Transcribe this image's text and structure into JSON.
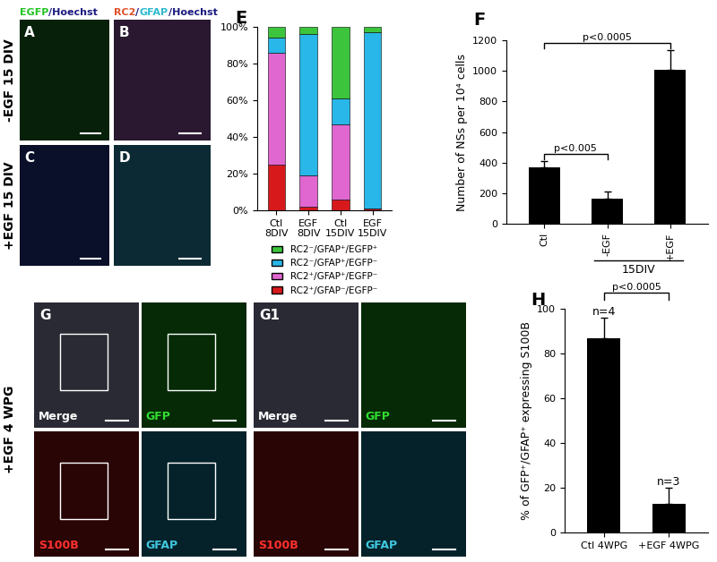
{
  "figure": {
    "row_labels": [
      "-EGF 15 DIV",
      "+EGF 15 DIV",
      "+EGF 4 WPG"
    ],
    "column_headers": [
      [
        {
          "text": "EGFP",
          "color": "#22c522"
        },
        {
          "text": "/Hoechst",
          "color": "#1a1a80"
        }
      ],
      [
        {
          "text": "RC2",
          "color": "#e0502a"
        },
        {
          "text": "/",
          "color": "#1a1a80"
        },
        {
          "text": "GFAP",
          "color": "#2fb8d0"
        },
        {
          "text": "/Hoechst",
          "color": "#1a1a80"
        }
      ]
    ],
    "image_panels": [
      "A",
      "B",
      "C",
      "D"
    ],
    "g_groups": [
      {
        "label": "G",
        "captions": [
          {
            "text": "Merge",
            "color": "#ffffff"
          },
          {
            "text": "GFP",
            "color": "#33dd33"
          },
          {
            "text": "S100B",
            "color": "#ff3030"
          },
          {
            "text": "GFAP",
            "color": "#40c8e0"
          }
        ]
      },
      {
        "label": "G1",
        "captions": [
          {
            "text": "Merge",
            "color": "#ffffff"
          },
          {
            "text": "GFP",
            "color": "#33dd33"
          },
          {
            "text": "S100B",
            "color": "#ff3030"
          },
          {
            "text": "GFAP",
            "color": "#40c8e0"
          }
        ]
      }
    ]
  },
  "chart_data": [
    {
      "panel_label": "E",
      "type": "bar",
      "stacked": true,
      "categories": [
        "Ctl\n8DIV",
        "EGF\n8DIV",
        "Ctl\n15DIV",
        "EGF\n15DIV"
      ],
      "series": [
        {
          "name": "RC2⁺/GFAP⁻/EGFP⁻",
          "color": "#d7191c",
          "values": [
            25,
            2,
            6,
            1
          ]
        },
        {
          "name": "RC2⁺/GFAP⁺/EGFP⁻",
          "color": "#e066d0",
          "values": [
            61,
            17,
            41,
            0
          ]
        },
        {
          "name": "RC2⁻/GFAP⁺/EGFP⁻",
          "color": "#29b6e8",
          "values": [
            8,
            77,
            14,
            96
          ]
        },
        {
          "name": "RC2⁻/GFAP⁺/EGFP⁺",
          "color": "#3cc43c",
          "values": [
            6,
            4,
            39,
            3
          ]
        }
      ],
      "ylim": [
        0,
        100
      ],
      "yticks": [
        {
          "value": 0,
          "label": "0%"
        },
        {
          "value": 20,
          "label": "20%"
        },
        {
          "value": 40,
          "label": "40%"
        },
        {
          "value": 60,
          "label": "60%"
        },
        {
          "value": 80,
          "label": "80%"
        },
        {
          "value": 100,
          "label": "100%"
        }
      ],
      "legend": "upper center"
    },
    {
      "panel_label": "F",
      "type": "bar",
      "categories": [
        "Ctl",
        "-EGF",
        "+EGF"
      ],
      "values": [
        370,
        165,
        1005
      ],
      "errors": [
        40,
        45,
        130
      ],
      "color": "#000000",
      "ylabel": "Number of NSs per 10⁴ cells",
      "ylim": [
        0,
        1200
      ],
      "yticks": [
        0,
        200,
        400,
        600,
        800,
        1000,
        1200
      ],
      "annotations": [
        {
          "text": "p<0.005",
          "between": [
            0,
            1
          ]
        },
        {
          "text": "p<0.0005",
          "between": [
            0,
            2
          ]
        }
      ],
      "group_labels": [
        {
          "text": "15DIV",
          "between": [
            1,
            2
          ]
        }
      ]
    },
    {
      "panel_label": "H",
      "type": "bar",
      "categories": [
        "Ctl 4WPG",
        "+EGF 4WPG"
      ],
      "values": [
        87,
        13
      ],
      "errors": [
        9,
        7
      ],
      "n_labels": [
        "n=4",
        "n=3"
      ],
      "color": "#000000",
      "ylabel": "% of GFP⁺/GFAP⁺ expressing S100B",
      "ylim": [
        0,
        100
      ],
      "yticks": [
        0,
        20,
        40,
        60,
        80,
        100
      ],
      "annotations": [
        {
          "text": "p<0.0005",
          "between": [
            0,
            1
          ]
        }
      ]
    }
  ]
}
